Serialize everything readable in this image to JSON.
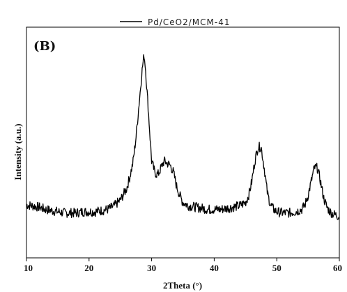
{
  "chart_data": {
    "type": "line",
    "panel_label": "(B)",
    "title": "",
    "xlabel": "2Theta (°)",
    "ylabel": "Intensity (a.u.)",
    "xlim": [
      10,
      60
    ],
    "ylim": [
      0,
      100
    ],
    "x_ticks": [
      10,
      20,
      30,
      40,
      50,
      60
    ],
    "legend_position": "top",
    "grid": false,
    "series": [
      {
        "name": "Pd/CeO2/MCM-41",
        "color": "#000000",
        "x": [
          10,
          11,
          12,
          13,
          14,
          15,
          16,
          17,
          18,
          19,
          20,
          21,
          22,
          23,
          24,
          25,
          26,
          26.5,
          27,
          27.5,
          28,
          28.5,
          28.8,
          29,
          29.5,
          30,
          30.5,
          31,
          31.5,
          32,
          32.5,
          33,
          33.5,
          34,
          34.5,
          35,
          36,
          37,
          38,
          39,
          40,
          41,
          42,
          43,
          44,
          45,
          45.5,
          46,
          46.5,
          47,
          47.5,
          48,
          48.5,
          49,
          49.5,
          50,
          51,
          52,
          53,
          54,
          54.5,
          55,
          55.5,
          56,
          56.5,
          57,
          57.5,
          58,
          58.5,
          59,
          59.5,
          60
        ],
        "values": [
          23,
          22.5,
          22,
          21,
          20.5,
          20,
          19.5,
          19.5,
          19.5,
          20,
          20,
          20,
          20.5,
          21,
          22.5,
          25,
          30,
          35,
          41,
          52,
          67,
          82,
          88,
          83,
          63,
          42,
          37,
          36,
          39,
          42,
          41,
          40,
          37,
          31,
          27,
          24,
          22.5,
          22,
          21.5,
          21,
          21,
          21,
          21.5,
          22,
          22.5,
          24,
          27,
          33,
          42,
          48,
          48,
          39,
          28,
          23,
          21,
          20,
          19.5,
          19.5,
          20,
          21,
          23,
          27,
          33,
          39,
          39,
          33,
          26,
          22,
          20,
          19,
          18.5,
          18
        ]
      }
    ]
  }
}
